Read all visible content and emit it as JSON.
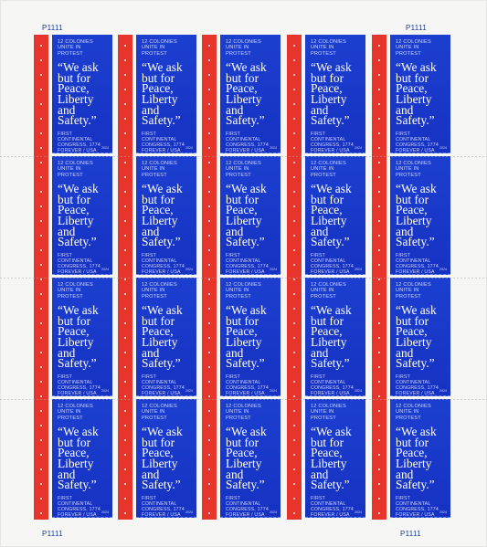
{
  "plate_numbers": {
    "top_left": "P1111",
    "top_right": "P1111",
    "bottom_left": "P1111",
    "bottom_right": "P1111"
  },
  "stamp": {
    "header": "12 COLONIES\nUNITE IN\nPROTEST",
    "quote": "“We ask\nbut for\nPeace,\nLiberty\nand\nSafety.”",
    "footer": "FIRST\nCONTINENTAL\nCONGRESS, 1774\nFOREVER / USA",
    "year": "2024"
  },
  "colors": {
    "stamp_blue": "#1736c8",
    "stripe_red": "#e8352b",
    "text_white": "#ffffff"
  }
}
